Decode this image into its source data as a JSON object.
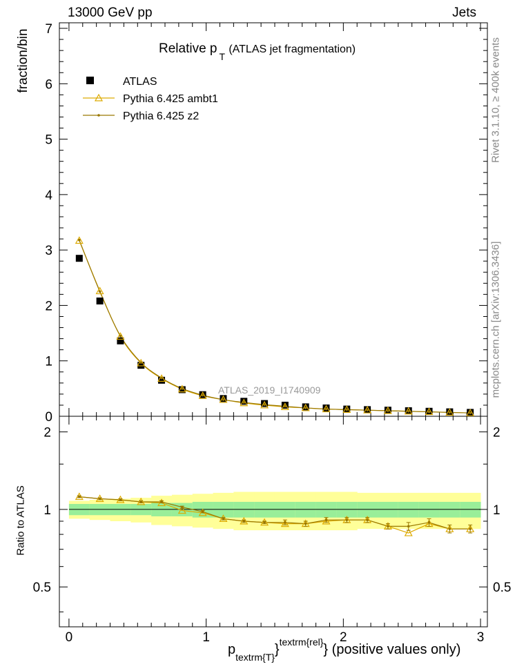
{
  "header": {
    "left": "13000 GeV pp",
    "right": "Jets"
  },
  "side": {
    "rivet": "Rivet 3.1.10, ≥ 400k events",
    "mcplots": "mcplots.cern.ch [arXiv:1306.3436]"
  },
  "chart_data": {
    "type": "line",
    "title_main": "Relative p",
    "title_sub": "T",
    "title_rest": "(ATLAS jet fragmentation)",
    "analysis_label": "ATLAS_2019_I1740909",
    "ylabel": "fraction/bin",
    "ratio_ylabel": "Ratio to ATLAS",
    "xlabel": {
      "p": "p",
      "sub": "textrm{T}",
      "brace": "}",
      "sup": "textrm{rel}",
      "tail": "} (positive values only)"
    },
    "xlim": [
      -0.07,
      3.05
    ],
    "ylim": [
      0,
      7.1
    ],
    "ratio_ylim": [
      0.35,
      2.3
    ],
    "x_ticks": [
      "0",
      "1",
      "2",
      "3"
    ],
    "y_ticks": [
      "0",
      "1",
      "2",
      "3",
      "4",
      "5",
      "6",
      "7"
    ],
    "ratio_ticks": [
      "0.5",
      "1",
      "2"
    ],
    "x": [
      0.075,
      0.225,
      0.375,
      0.525,
      0.675,
      0.825,
      0.975,
      1.125,
      1.275,
      1.425,
      1.575,
      1.725,
      1.875,
      2.025,
      2.175,
      2.325,
      2.475,
      2.625,
      2.775,
      2.925
    ],
    "bin_edges": [
      0.0,
      0.15,
      0.3,
      0.45,
      0.6,
      0.75,
      0.9,
      1.05,
      1.2,
      1.35,
      1.5,
      1.65,
      1.8,
      1.95,
      2.1,
      2.25,
      2.4,
      2.55,
      2.7,
      2.85,
      3.0
    ],
    "band_inner": [
      0.05,
      0.05,
      0.05,
      0.05,
      0.06,
      0.06,
      0.07,
      0.07,
      0.07,
      0.07,
      0.07,
      0.07,
      0.07,
      0.07,
      0.07,
      0.07,
      0.07,
      0.07,
      0.07,
      0.07
    ],
    "band_outer": [
      0.08,
      0.09,
      0.1,
      0.11,
      0.13,
      0.14,
      0.15,
      0.16,
      0.17,
      0.17,
      0.17,
      0.17,
      0.17,
      0.17,
      0.16,
      0.16,
      0.16,
      0.16,
      0.16,
      0.16
    ],
    "series": [
      {
        "name": "ATLAS",
        "marker": "square",
        "color": "#000000",
        "values": [
          2.85,
          2.08,
          1.36,
          0.92,
          0.65,
          0.48,
          0.39,
          0.32,
          0.27,
          0.23,
          0.2,
          0.17,
          0.15,
          0.13,
          0.12,
          0.11,
          0.1,
          0.09,
          0.08,
          0.07
        ]
      },
      {
        "name": "Pythia 6.425 ambt1",
        "marker": "triangle",
        "color": "#ddaa00",
        "values": [
          3.17,
          2.26,
          1.44,
          0.96,
          0.68,
          0.49,
          0.37,
          0.3,
          0.24,
          0.2,
          0.17,
          0.15,
          0.13,
          0.12,
          0.11,
          0.1,
          0.09,
          0.08,
          0.07,
          0.06
        ],
        "ratio": [
          1.12,
          1.1,
          1.09,
          1.07,
          1.06,
          0.99,
          0.97,
          0.92,
          0.9,
          0.89,
          0.88,
          0.88,
          0.9,
          0.91,
          0.91,
          0.86,
          0.81,
          0.88,
          0.84,
          0.84
        ]
      },
      {
        "name": "Pythia 6.425 z2",
        "marker": "dot",
        "color": "#997700",
        "values": [
          3.18,
          2.25,
          1.45,
          0.97,
          0.69,
          0.5,
          0.38,
          0.3,
          0.25,
          0.21,
          0.18,
          0.15,
          0.13,
          0.12,
          0.11,
          0.1,
          0.09,
          0.08,
          0.07,
          0.06
        ],
        "ratio": [
          1.12,
          1.1,
          1.09,
          1.07,
          1.07,
          1.02,
          0.98,
          0.92,
          0.9,
          0.89,
          0.89,
          0.88,
          0.91,
          0.91,
          0.91,
          0.86,
          0.86,
          0.89,
          0.84,
          0.84
        ],
        "ratio_err": [
          0.01,
          0.01,
          0.01,
          0.01,
          0.01,
          0.01,
          0.01,
          0.01,
          0.01,
          0.01,
          0.02,
          0.02,
          0.02,
          0.02,
          0.02,
          0.02,
          0.03,
          0.03,
          0.03,
          0.03
        ]
      }
    ],
    "legend_position": "top-left",
    "ratio_reference": 1,
    "band_colors": {
      "inner": "#99ee99",
      "outer": "#ffff99"
    }
  }
}
